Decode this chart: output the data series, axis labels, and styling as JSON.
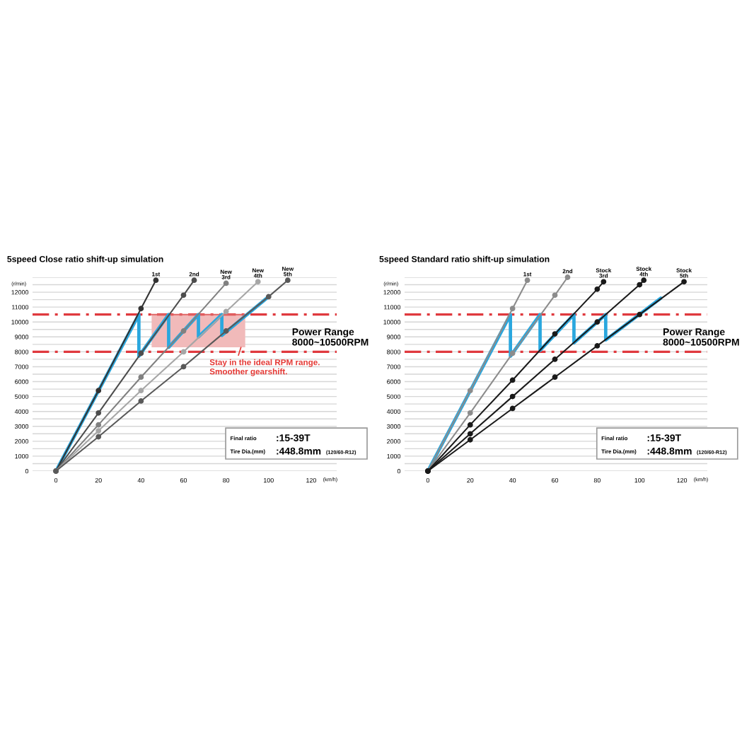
{
  "chart_data": [
    {
      "type": "line",
      "title": "5speed Close ratio shift-up simulation",
      "xlabel": "(km/h)",
      "ylabel": "(r/min)",
      "xlim": [
        -11,
        132
      ],
      "xticks": [
        0,
        20,
        40,
        60,
        80,
        100,
        120
      ],
      "ylim": [
        0,
        13000
      ],
      "yticks": [
        0,
        {
          "value": 500,
          "label": null
        },
        1000,
        {
          "value": 1500,
          "label": null
        },
        2000,
        {
          "value": 2500,
          "label": null
        },
        3000,
        {
          "value": 3500,
          "label": null
        },
        4000,
        {
          "value": 4500,
          "label": null
        },
        5000,
        {
          "value": 5500,
          "label": null
        },
        6000,
        {
          "value": 6500,
          "label": null
        },
        7000,
        {
          "value": 7500,
          "label": null
        },
        8000,
        {
          "value": 8500,
          "label": null
        },
        9000,
        {
          "value": 9500,
          "label": null
        },
        10000,
        11000,
        {
          "value": 11500,
          "label": null
        },
        12000,
        {
          "value": 12500,
          "label": null
        },
        {
          "value": 13000,
          "label": null
        }
      ],
      "grid": "y",
      "ref_lines": [
        {
          "axis": "y",
          "value": 10500,
          "color": "#e0393e",
          "line_style": "dashdot"
        },
        {
          "axis": "y",
          "value": 8000,
          "color": "#e0393e",
          "line_style": "dashdot"
        }
      ],
      "series": [
        {
          "type": "line",
          "color": "#e06666",
          "x": [
            45,
            89
          ],
          "values": [
            10500,
            10500
          ],
          "lower": [
            8300,
            8300
          ],
          "upper": [
            10500,
            10500
          ]
        },
        {
          "name": "1st",
          "color": "#333333",
          "marker": "circle",
          "x": [
            0,
            20,
            40,
            47
          ],
          "values": [
            0,
            5400,
            10900,
            12800
          ]
        },
        {
          "name": "2nd",
          "color": "#4d4d4d",
          "marker": "circle",
          "x": [
            0,
            20,
            40,
            60,
            65
          ],
          "values": [
            0,
            3900,
            7900,
            11800,
            12800
          ]
        },
        {
          "name": "New 3rd",
          "color": "#808080",
          "marker": "circle",
          "x": [
            0,
            20,
            40,
            60,
            80
          ],
          "values": [
            0,
            3100,
            6300,
            9400,
            12600
          ]
        },
        {
          "name": "New 4th",
          "color": "#a6a6a6",
          "marker": "circle",
          "x": [
            0,
            20,
            40,
            60,
            80,
            95
          ],
          "values": [
            0,
            2700,
            5400,
            8000,
            10700,
            12700
          ]
        },
        {
          "name": "New 5th",
          "color": "#595959",
          "marker": "circle",
          "x": [
            0,
            20,
            40,
            60,
            80,
            100,
            109
          ],
          "values": [
            0,
            2300,
            4700,
            7000,
            9400,
            11700,
            12800
          ]
        },
        {
          "color": "#2aa7de",
          "x": [
            0,
            39,
            39,
            53,
            53,
            67,
            67,
            78,
            78,
            100
          ],
          "values": [
            0,
            10500,
            7700,
            10500,
            8300,
            10500,
            9000,
            10500,
            9100,
            11700
          ]
        }
      ],
      "annotations": [
        "Power Range\n8000~10500RPM",
        "Final ratio",
        ":15-39T",
        "Tire Dia.(mm)",
        ":448.8mm",
        "(120/60-R12)",
        {
          "text": "Stay in the ideal RPM range.\nSmoother gearshift.",
          "x": 87,
          "y": 8300
        }
      ]
    },
    {
      "type": "line",
      "title": "5speed Standard ratio shift-up simulation",
      "xlabel": "(km/h)",
      "ylabel": "(r/min)",
      "xlim": [
        -11,
        132
      ],
      "xticks": [
        0,
        20,
        40,
        60,
        80,
        100,
        120
      ],
      "ylim": [
        0,
        13000
      ],
      "yticks": [
        0,
        {
          "value": 500,
          "label": null
        },
        1000,
        {
          "value": 1500,
          "label": null
        },
        2000,
        {
          "value": 2500,
          "label": null
        },
        3000,
        {
          "value": 3500,
          "label": null
        },
        4000,
        {
          "value": 4500,
          "label": null
        },
        5000,
        {
          "value": 5500,
          "label": null
        },
        6000,
        {
          "value": 6500,
          "label": null
        },
        7000,
        {
          "value": 7500,
          "label": null
        },
        8000,
        {
          "value": 8500,
          "label": null
        },
        9000,
        {
          "value": 9500,
          "label": null
        },
        10000,
        11000,
        {
          "value": 11500,
          "label": null
        },
        12000,
        {
          "value": 12500,
          "label": null
        },
        {
          "value": 13000,
          "label": null
        }
      ],
      "grid": "y",
      "ref_lines": [
        {
          "axis": "y",
          "value": 10500,
          "color": "#e0393e",
          "line_style": "dashdot"
        },
        {
          "axis": "y",
          "value": 8000,
          "color": "#e0393e",
          "line_style": "dashdot"
        }
      ],
      "series": [
        {
          "name": "1st",
          "color": "#8c8c8c",
          "marker": "circle",
          "x": [
            0,
            20,
            40,
            47
          ],
          "values": [
            0,
            5400,
            10900,
            12800
          ]
        },
        {
          "name": "2nd",
          "color": "#8c8c8c",
          "marker": "circle",
          "x": [
            0,
            20,
            40,
            60,
            66
          ],
          "values": [
            0,
            3900,
            7900,
            11800,
            13000
          ]
        },
        {
          "name": "Stock 3rd",
          "color": "#1a1a1a",
          "marker": "circle",
          "x": [
            0,
            20,
            40,
            60,
            80,
            83
          ],
          "values": [
            0,
            3100,
            6100,
            9200,
            12200,
            12700
          ]
        },
        {
          "name": "Stock 4th",
          "color": "#1a1a1a",
          "marker": "circle",
          "x": [
            0,
            20,
            40,
            60,
            80,
            100,
            102
          ],
          "values": [
            0,
            2500,
            5000,
            7500,
            10000,
            12500,
            12800
          ]
        },
        {
          "name": "Stock 5th",
          "color": "#1a1a1a",
          "marker": "circle",
          "x": [
            0,
            20,
            40,
            60,
            80,
            100,
            121
          ],
          "values": [
            0,
            2100,
            4200,
            6300,
            8400,
            10500,
            12700
          ]
        },
        {
          "color": "#2aa7de",
          "x": [
            0,
            39,
            39,
            53,
            53,
            69,
            69,
            84,
            84,
            110
          ],
          "values": [
            0,
            10500,
            7700,
            10500,
            8100,
            10500,
            8600,
            10500,
            8800,
            11600
          ]
        }
      ],
      "annotations": [
        "Power Range\n8000~10500RPM",
        "Final ratio",
        ":15-39T",
        "Tire Dia.(mm)",
        ":448.8mm",
        "(120/60-R12)"
      ]
    }
  ]
}
